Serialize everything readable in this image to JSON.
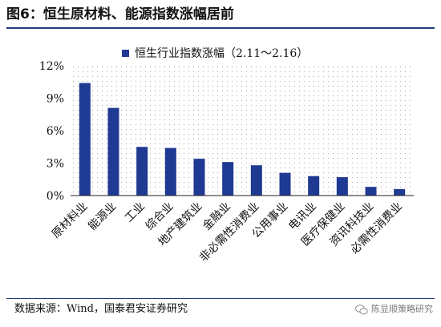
{
  "figure_title": "图6：恒生原材料、能源指数涨幅居前",
  "source_text": "数据来源：Wind，国泰君安证券研究",
  "watermark": {
    "text": "陈显顺策略研究",
    "icon": "wechat-icon"
  },
  "chart_data": {
    "type": "bar",
    "title": "",
    "xlabel": "",
    "ylabel": "",
    "categories": [
      "原材料业",
      "能源业",
      "工业",
      "综合业",
      "地产建筑业",
      "金融业",
      "非必需性消费业",
      "公用事业",
      "电讯业",
      "医疗保健业",
      "资讯科技业",
      "必需性消费业"
    ],
    "series": [
      {
        "name": "恒生行业指数涨幅（2.11～2.16）",
        "values": [
          10.4,
          8.1,
          4.5,
          4.4,
          3.4,
          3.1,
          2.8,
          2.1,
          1.8,
          1.7,
          0.8,
          0.6
        ]
      }
    ],
    "ylim": [
      0,
      12
    ],
    "yticks": [
      "0%",
      "3%",
      "6%",
      "9%",
      "12%"
    ],
    "legend_position": "top",
    "grid": "dotted background",
    "bar_color": "#1f3a93"
  }
}
